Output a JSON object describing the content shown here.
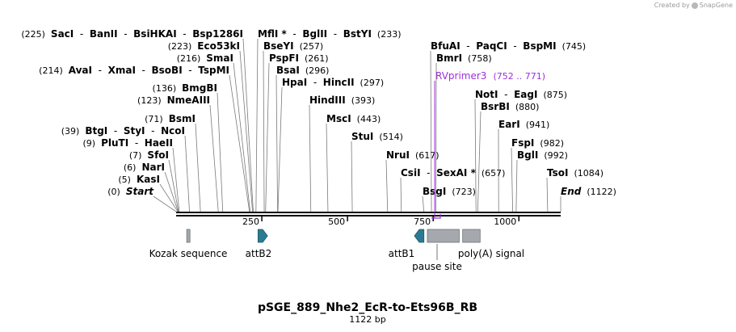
{
  "credit": {
    "created_by": "Created by",
    "brand": "SnapGene"
  },
  "title": "pSGE_889_Nhe2_EcR-to-Ets96B_RB",
  "length_label": "1122 bp",
  "sequence_length": 1122,
  "ticks": [
    {
      "value": 250,
      "label": "250"
    },
    {
      "value": 500,
      "label": "500"
    },
    {
      "value": 750,
      "label": "750"
    },
    {
      "value": 1000,
      "label": "1000"
    }
  ],
  "site_groups": [
    {
      "id": "start",
      "side": "left",
      "pos_label": "(0)",
      "special": true,
      "sites": [
        {
          "name": "Start",
          "pos": 0
        }
      ]
    },
    {
      "id": "kasi",
      "side": "left",
      "pos_label": "(5)",
      "sites": [
        {
          "name": "KasI",
          "pos": 5
        }
      ]
    },
    {
      "id": "nari",
      "side": "left",
      "pos_label": "(6)",
      "sites": [
        {
          "name": "NarI",
          "pos": 6
        }
      ]
    },
    {
      "id": "sfoi",
      "side": "left",
      "pos_label": "(7)",
      "sites": [
        {
          "name": "SfoI",
          "pos": 7
        }
      ]
    },
    {
      "id": "pluti",
      "side": "left",
      "pos_label": "(9)",
      "sites": [
        {
          "name": "PluTI",
          "pos": 9
        },
        {
          "name": "HaeII",
          "pos": 9
        }
      ]
    },
    {
      "id": "btgi",
      "side": "left",
      "pos_label": "(39)",
      "sites": [
        {
          "name": "BtgI",
          "pos": 39
        },
        {
          "name": "StyI",
          "pos": 39
        },
        {
          "name": "NcoI",
          "pos": 39
        }
      ]
    },
    {
      "id": "bsmi",
      "side": "left",
      "pos_label": "(71)",
      "sites": [
        {
          "name": "BsmI",
          "pos": 71
        }
      ]
    },
    {
      "id": "nmeaiii",
      "side": "left",
      "pos_label": "(123)",
      "sites": [
        {
          "name": "NmeAIII",
          "pos": 123
        }
      ]
    },
    {
      "id": "bmgbi",
      "side": "left",
      "pos_label": "(136)",
      "sites": [
        {
          "name": "BmgBI",
          "pos": 136
        }
      ]
    },
    {
      "id": "avai",
      "side": "left",
      "pos_label": "(214)",
      "sites": [
        {
          "name": "AvaI",
          "pos": 214
        },
        {
          "name": "XmaI",
          "pos": 214
        },
        {
          "name": "BsoBI",
          "pos": 214
        },
        {
          "name": "TspMI",
          "pos": 214
        }
      ]
    },
    {
      "id": "smai",
      "side": "left",
      "pos_label": "(216)",
      "sites": [
        {
          "name": "SmaI",
          "pos": 216
        }
      ]
    },
    {
      "id": "eco53ki",
      "side": "left",
      "pos_label": "(223)",
      "sites": [
        {
          "name": "Eco53kI",
          "pos": 223
        }
      ]
    },
    {
      "id": "saci",
      "side": "left",
      "pos_label": "(225)",
      "sites": [
        {
          "name": "SacI",
          "pos": 225
        },
        {
          "name": "BanII",
          "pos": 225
        },
        {
          "name": "BsiHKAI",
          "pos": 225
        },
        {
          "name": "Bsp1286I",
          "pos": 225
        }
      ]
    },
    {
      "id": "mfli",
      "side": "right",
      "pos_label": "(233)",
      "sites": [
        {
          "name": "MflI *",
          "pos": 233
        },
        {
          "name": "BglII",
          "pos": 233
        },
        {
          "name": "BstYI",
          "pos": 233
        }
      ]
    },
    {
      "id": "bseyi",
      "side": "right",
      "pos_label": "(257)",
      "sites": [
        {
          "name": "BseYI",
          "pos": 257
        }
      ]
    },
    {
      "id": "pspfi",
      "side": "right",
      "pos_label": "(261)",
      "sites": [
        {
          "name": "PspFI",
          "pos": 261
        }
      ]
    },
    {
      "id": "bsai",
      "side": "right",
      "pos_label": "(296)",
      "sites": [
        {
          "name": "BsaI",
          "pos": 296
        }
      ]
    },
    {
      "id": "hpai",
      "side": "right",
      "pos_label": "(297)",
      "sites": [
        {
          "name": "HpaI",
          "pos": 297
        },
        {
          "name": "HincII",
          "pos": 297
        }
      ]
    },
    {
      "id": "hindiii",
      "side": "right",
      "pos_label": "(393)",
      "sites": [
        {
          "name": "HindIII",
          "pos": 393
        }
      ]
    },
    {
      "id": "msci",
      "side": "right",
      "pos_label": "(443)",
      "sites": [
        {
          "name": "MscI",
          "pos": 443
        }
      ]
    },
    {
      "id": "stui",
      "side": "right",
      "pos_label": "(514)",
      "sites": [
        {
          "name": "StuI",
          "pos": 514
        }
      ]
    },
    {
      "id": "nrui",
      "side": "right",
      "pos_label": "(617)",
      "sites": [
        {
          "name": "NruI",
          "pos": 617
        }
      ]
    },
    {
      "id": "csii",
      "side": "right",
      "pos_label": "(657)",
      "sites": [
        {
          "name": "CsiI",
          "pos": 657
        },
        {
          "name": "SexAI *",
          "pos": 657
        }
      ]
    },
    {
      "id": "bsgi",
      "side": "right",
      "pos_label": "(723)",
      "sites": [
        {
          "name": "BsgI",
          "pos": 723
        }
      ]
    },
    {
      "id": "bfuai",
      "side": "right",
      "pos_label": "(745)",
      "sites": [
        {
          "name": "BfuAI",
          "pos": 745
        },
        {
          "name": "PaqCI",
          "pos": 745
        },
        {
          "name": "BspMI",
          "pos": 745
        }
      ]
    },
    {
      "id": "bmri",
      "side": "right",
      "pos_label": "(758)",
      "sites": [
        {
          "name": "BmrI",
          "pos": 758
        }
      ]
    },
    {
      "id": "noti",
      "side": "right",
      "pos_label": "(875)",
      "sites": [
        {
          "name": "NotI",
          "pos": 875
        },
        {
          "name": "EagI",
          "pos": 875
        }
      ]
    },
    {
      "id": "bsrbi",
      "side": "right",
      "pos_label": "(880)",
      "sites": [
        {
          "name": "BsrBI",
          "pos": 880
        }
      ]
    },
    {
      "id": "eari",
      "side": "right",
      "pos_label": "(941)",
      "sites": [
        {
          "name": "EarI",
          "pos": 941
        }
      ]
    },
    {
      "id": "fspi",
      "side": "right",
      "pos_label": "(982)",
      "sites": [
        {
          "name": "FspI",
          "pos": 982
        }
      ]
    },
    {
      "id": "bgli",
      "side": "right",
      "pos_label": "(992)",
      "sites": [
        {
          "name": "BglI",
          "pos": 992
        }
      ]
    },
    {
      "id": "tsoi",
      "side": "right",
      "pos_label": "(1084)",
      "sites": [
        {
          "name": "TsoI",
          "pos": 1084
        }
      ]
    },
    {
      "id": "end",
      "side": "right",
      "pos_label": "(1122)",
      "special": true,
      "sites": [
        {
          "name": "End",
          "pos": 1122
        }
      ]
    }
  ],
  "primer": {
    "name": "RVprimer3",
    "range_label": "(752 .. 771)",
    "start": 752,
    "end": 771,
    "color": "#9b30d9"
  },
  "features": [
    {
      "id": "kozak",
      "label": "Kozak sequence",
      "start": 31,
      "end": 40,
      "type": "box",
      "color": "#a5a9ad"
    },
    {
      "id": "attb2",
      "label": "attB2",
      "start": 239,
      "end": 262,
      "type": "arrow-right",
      "color": "#2a7b91"
    },
    {
      "id": "attb1",
      "label": "attB1",
      "start": 700,
      "end": 723,
      "type": "arrow-left",
      "color": "#2a7b91"
    },
    {
      "id": "pause",
      "label": "pause site",
      "start": 733,
      "end": 826,
      "type": "box",
      "color": "#a5a9ad"
    },
    {
      "id": "polya",
      "label": "poly(A) signal",
      "start": 836,
      "end": 887,
      "type": "box",
      "color": "#a5a9ad"
    }
  ],
  "colors": {
    "backbone": "#000000",
    "connector": "#7a7a7a",
    "primer": "#9b30d9"
  }
}
